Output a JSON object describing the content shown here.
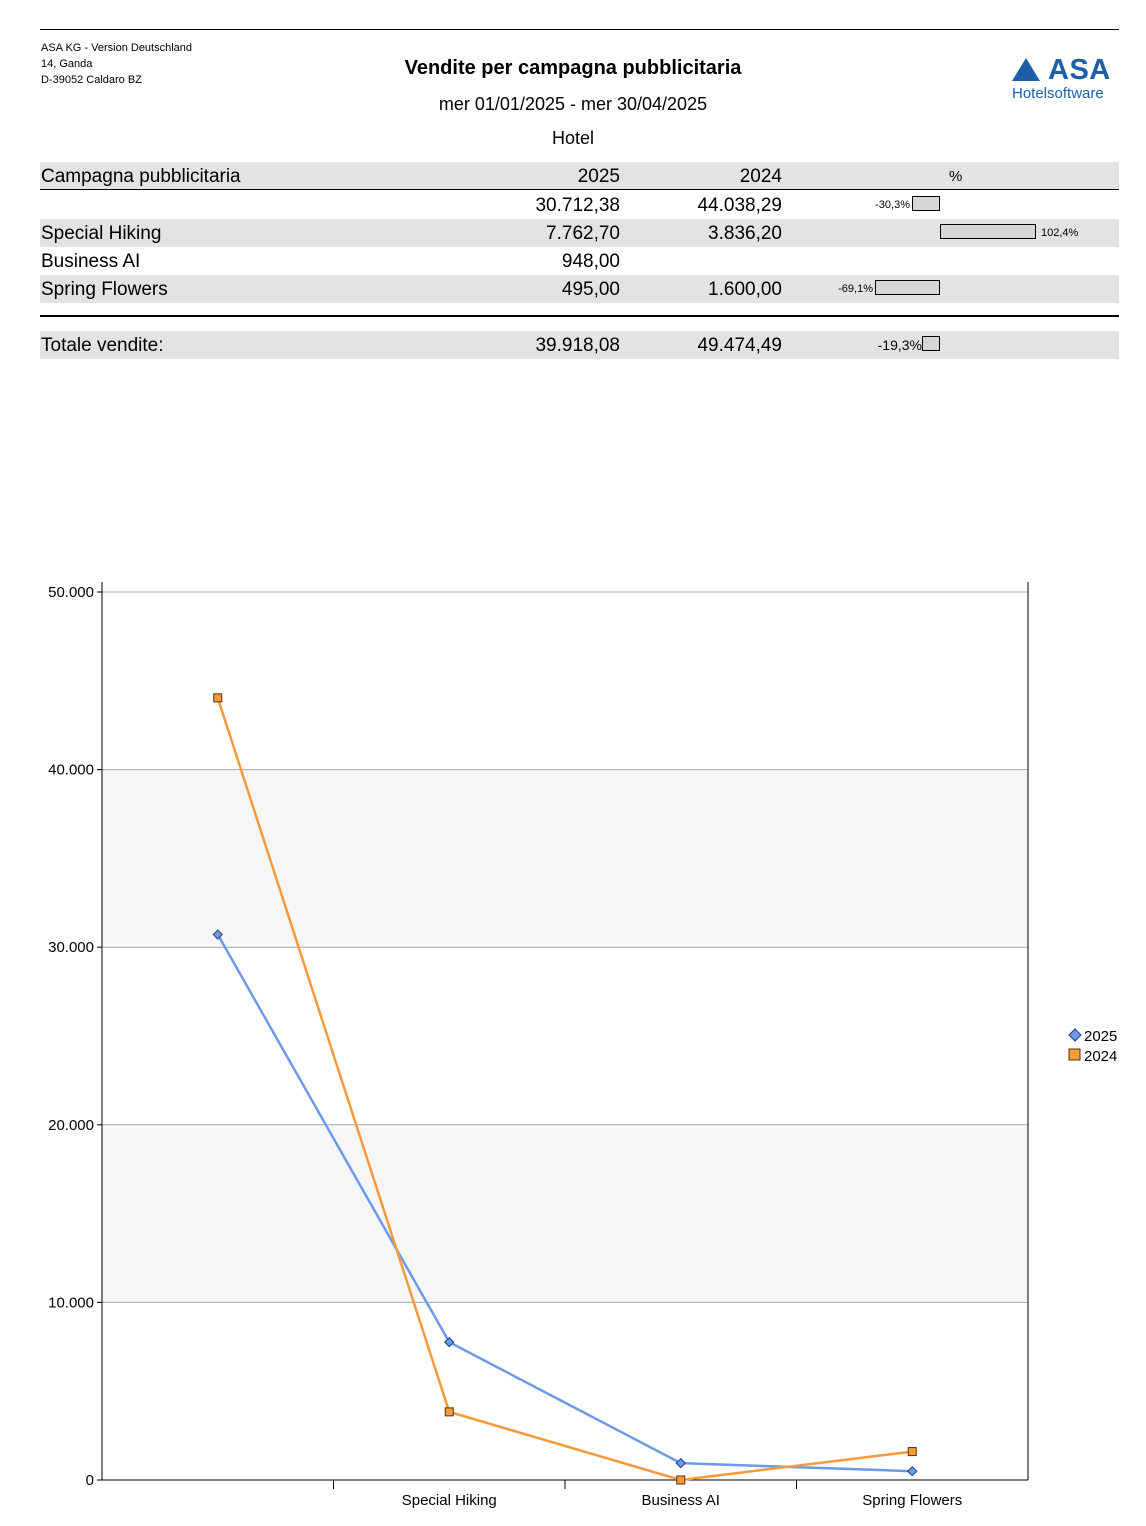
{
  "header": {
    "company_lines": [
      "ASA KG - Version Deutschland",
      "14, Ganda",
      "D-39052 Caldaro BZ"
    ],
    "title": "Vendite per campagna pubblicitaria",
    "period": "mer 01/01/2025 - mer 30/04/2025",
    "department": "Hotel",
    "logo_word": "ASA",
    "logo_sub": "Hotelsoftware",
    "brand_color": "#1e5fa8"
  },
  "table": {
    "columns": {
      "name": "Campagna pubblicitaria",
      "year1": "2025",
      "year2": "2024",
      "pct": "%"
    },
    "rows": [
      {
        "name": "",
        "v2025": "30.712,38",
        "v2024": "44.038,29",
        "pct_label": "-30,3%",
        "pct": -30.3
      },
      {
        "name": "Special Hiking",
        "v2025": "7.762,70",
        "v2024": "3.836,20",
        "pct_label": "102,4%",
        "pct": 102.4
      },
      {
        "name": "Business AI",
        "v2025": "948,00",
        "v2024": "",
        "pct_label": "",
        "pct": null
      },
      {
        "name": "Spring Flowers",
        "v2025": "495,00",
        "v2024": "1.600,00",
        "pct_label": "-69,1%",
        "pct": -69.1
      }
    ],
    "total": {
      "name": "Totale vendite:",
      "v2025": "39.918,08",
      "v2024": "49.474,49",
      "pct_label": "-19,3%",
      "pct": -19.3
    }
  },
  "chart_data": {
    "type": "line",
    "categories": [
      "",
      "Special Hiking",
      "Business AI",
      "Spring Flowers"
    ],
    "series": [
      {
        "name": "2025",
        "values": [
          30712.38,
          7762.7,
          948.0,
          495.0
        ],
        "color": "#6b9ae8",
        "marker": "diamond"
      },
      {
        "name": "2024",
        "values": [
          44038.29,
          3836.2,
          0,
          1600.0
        ],
        "color": "#f79a3a",
        "marker": "square"
      }
    ],
    "ylim": [
      0,
      50000
    ],
    "yticks": [
      0,
      10000,
      20000,
      30000,
      40000,
      50000
    ],
    "ytick_labels": [
      "0",
      "10.000",
      "20.000",
      "30.000",
      "40.000",
      "50.000"
    ],
    "grid": true,
    "legend": "right"
  }
}
